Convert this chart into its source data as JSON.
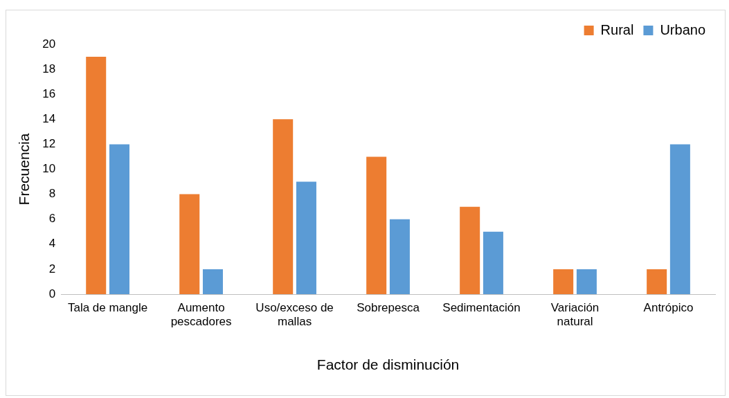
{
  "chart_data": {
    "type": "bar",
    "xlabel": "Factor de disminución",
    "ylabel": "Frecuencia",
    "categories": [
      "Tala de mangle",
      "Aumento pescadores",
      "Uso/exceso de mallas",
      "Sobrepesca",
      "Sedimentación",
      "Variación natural",
      "Antrópico"
    ],
    "series": [
      {
        "name": "Rural",
        "color": "#ed7d31",
        "values": [
          19,
          8,
          14,
          11,
          7,
          2,
          2
        ]
      },
      {
        "name": "Urbano",
        "color": "#5b9bd5",
        "values": [
          12,
          2,
          9,
          6,
          5,
          2,
          12
        ]
      }
    ],
    "ylim": [
      0,
      20
    ],
    "yticks": [
      0,
      2,
      4,
      6,
      8,
      10,
      12,
      14,
      16,
      18,
      20
    ],
    "legend": "top right"
  }
}
